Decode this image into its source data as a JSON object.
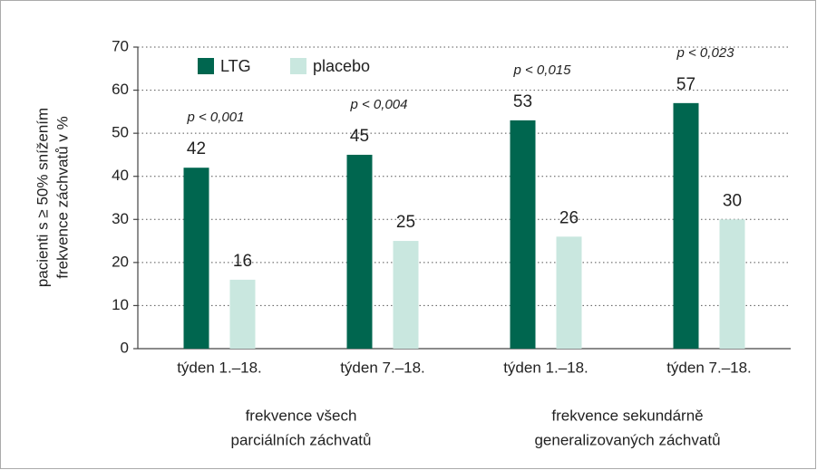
{
  "chart_data": {
    "type": "bar",
    "y_label": [
      "pacienti s ≥ 50% snížením",
      "frekvence záchvatů v %"
    ],
    "categories": [
      "týden 1.–18.",
      "týden 7.–18.",
      "týden 1.–18.",
      "týden 7.–18."
    ],
    "group_labels": [
      [
        "frekvence všech",
        "parciálních záchvatů"
      ],
      [
        "frekvence sekundárně",
        "generalizovaných záchvatů"
      ]
    ],
    "annotations": [
      "p < 0,001",
      "p < 0,004",
      "p < 0,015",
      "p < 0,023"
    ],
    "series": [
      {
        "name": "LTG",
        "color": "#00664f",
        "values": [
          42,
          45,
          53,
          57
        ]
      },
      {
        "name": "placebo",
        "color": "#c9e7df",
        "values": [
          16,
          25,
          26,
          30
        ]
      }
    ],
    "ylim": [
      0,
      70
    ],
    "yticks": [
      0,
      10,
      20,
      30,
      40,
      50,
      60,
      70
    ],
    "grid": true,
    "legend": "upper-left"
  }
}
